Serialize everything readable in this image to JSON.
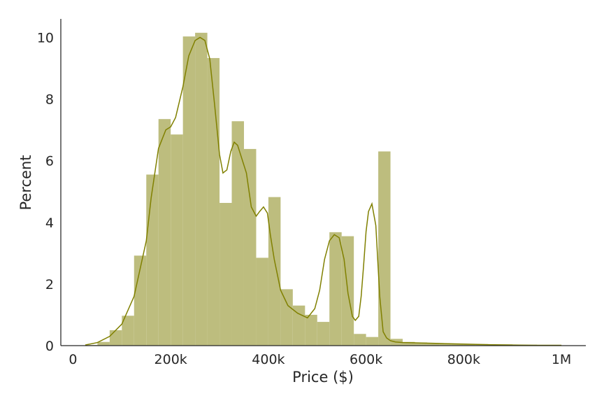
{
  "chart_data": {
    "type": "histogram",
    "title": "",
    "xlabel": "Price ($)",
    "ylabel": "Percent",
    "xlim": [
      -25000,
      1050000
    ],
    "ylim": [
      0,
      10.6
    ],
    "x_ticks": [
      {
        "value": 0,
        "label": "0"
      },
      {
        "value": 200000,
        "label": "200k"
      },
      {
        "value": 400000,
        "label": "400k"
      },
      {
        "value": 600000,
        "label": "600k"
      },
      {
        "value": 800000,
        "label": "800k"
      },
      {
        "value": 1000000,
        "label": "1M"
      }
    ],
    "y_ticks": [
      {
        "value": 0,
        "label": "0"
      },
      {
        "value": 2,
        "label": "2"
      },
      {
        "value": 4,
        "label": "4"
      },
      {
        "value": 6,
        "label": "6"
      },
      {
        "value": 8,
        "label": "8"
      },
      {
        "value": 10,
        "label": "10"
      }
    ],
    "grid": false,
    "colors": {
      "bar_fill": "#bdbd7e",
      "kde_line": "#808000",
      "axis": "#262626"
    },
    "bins": [
      {
        "x0": 25000,
        "x1": 50000,
        "value": 0.02
      },
      {
        "x0": 50000,
        "x1": 75000,
        "value": 0.12
      },
      {
        "x0": 75000,
        "x1": 100000,
        "value": 0.5
      },
      {
        "x0": 100000,
        "x1": 125000,
        "value": 0.97
      },
      {
        "x0": 125000,
        "x1": 150000,
        "value": 2.92
      },
      {
        "x0": 150000,
        "x1": 175000,
        "value": 5.55
      },
      {
        "x0": 175000,
        "x1": 200000,
        "value": 7.35
      },
      {
        "x0": 200000,
        "x1": 225000,
        "value": 6.85
      },
      {
        "x0": 225000,
        "x1": 250000,
        "value": 10.03
      },
      {
        "x0": 250000,
        "x1": 275000,
        "value": 10.15
      },
      {
        "x0": 275000,
        "x1": 300000,
        "value": 9.33
      },
      {
        "x0": 300000,
        "x1": 325000,
        "value": 4.63
      },
      {
        "x0": 325000,
        "x1": 350000,
        "value": 7.28
      },
      {
        "x0": 350000,
        "x1": 375000,
        "value": 6.38
      },
      {
        "x0": 375000,
        "x1": 400000,
        "value": 2.85
      },
      {
        "x0": 400000,
        "x1": 425000,
        "value": 4.82
      },
      {
        "x0": 425000,
        "x1": 450000,
        "value": 1.83
      },
      {
        "x0": 450000,
        "x1": 475000,
        "value": 1.3
      },
      {
        "x0": 475000,
        "x1": 500000,
        "value": 1.0
      },
      {
        "x0": 500000,
        "x1": 525000,
        "value": 0.77
      },
      {
        "x0": 525000,
        "x1": 550000,
        "value": 3.68
      },
      {
        "x0": 550000,
        "x1": 575000,
        "value": 3.55
      },
      {
        "x0": 575000,
        "x1": 600000,
        "value": 0.38
      },
      {
        "x0": 600000,
        "x1": 625000,
        "value": 0.28
      },
      {
        "x0": 625000,
        "x1": 650000,
        "value": 6.3
      },
      {
        "x0": 650000,
        "x1": 675000,
        "value": 0.22
      },
      {
        "x0": 675000,
        "x1": 700000,
        "value": 0.12
      },
      {
        "x0": 700000,
        "x1": 725000,
        "value": 0.1
      },
      {
        "x0": 725000,
        "x1": 750000,
        "value": 0.08
      },
      {
        "x0": 750000,
        "x1": 775000,
        "value": 0.07
      },
      {
        "x0": 775000,
        "x1": 800000,
        "value": 0.06
      },
      {
        "x0": 800000,
        "x1": 825000,
        "value": 0.05
      },
      {
        "x0": 825000,
        "x1": 850000,
        "value": 0.05
      },
      {
        "x0": 850000,
        "x1": 875000,
        "value": 0.04
      },
      {
        "x0": 875000,
        "x1": 900000,
        "value": 0.04
      },
      {
        "x0": 900000,
        "x1": 925000,
        "value": 0.03
      },
      {
        "x0": 925000,
        "x1": 950000,
        "value": 0.03
      },
      {
        "x0": 950000,
        "x1": 975000,
        "value": 0.02
      },
      {
        "x0": 975000,
        "x1": 1000000,
        "value": 0.02
      }
    ],
    "kde": {
      "x": [
        25000,
        50000,
        75000,
        100000,
        125000,
        150000,
        160000,
        175000,
        190000,
        200000,
        210000,
        225000,
        237000,
        250000,
        260000,
        270000,
        280000,
        290000,
        300000,
        307000,
        315000,
        323000,
        330000,
        337000,
        345000,
        355000,
        365000,
        375000,
        382000,
        390000,
        398000,
        404000,
        412000,
        425000,
        440000,
        460000,
        480000,
        495000,
        505000,
        515000,
        525000,
        535000,
        545000,
        555000,
        563000,
        572000,
        578000,
        585000,
        590000,
        595000,
        600000,
        605000,
        612000,
        620000,
        628000,
        635000,
        642000,
        650000,
        660000,
        675000,
        700000,
        750000,
        800000,
        850000,
        900000,
        950000,
        1000000
      ],
      "y": [
        0.02,
        0.1,
        0.3,
        0.7,
        1.6,
        3.4,
        4.8,
        6.4,
        7.0,
        7.1,
        7.4,
        8.4,
        9.4,
        9.9,
        10.0,
        9.9,
        9.3,
        7.8,
        6.2,
        5.6,
        5.7,
        6.3,
        6.6,
        6.5,
        6.1,
        5.6,
        4.5,
        4.2,
        4.35,
        4.5,
        4.3,
        3.6,
        2.8,
        1.8,
        1.3,
        1.05,
        0.9,
        1.2,
        1.8,
        2.8,
        3.4,
        3.6,
        3.5,
        2.8,
        1.7,
        0.95,
        0.82,
        0.95,
        1.6,
        2.6,
        3.7,
        4.35,
        4.6,
        3.9,
        1.6,
        0.45,
        0.25,
        0.16,
        0.12,
        0.1,
        0.09,
        0.07,
        0.05,
        0.03,
        0.02,
        0.01,
        0.01
      ]
    }
  }
}
